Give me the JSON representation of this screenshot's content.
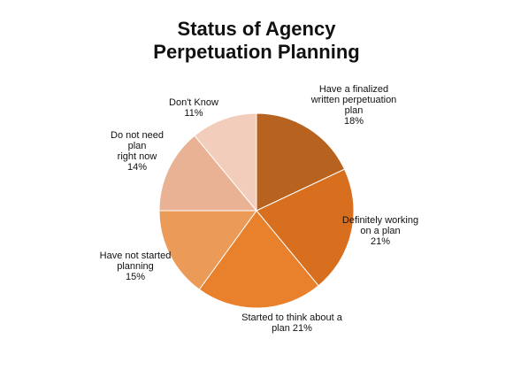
{
  "chart_data": {
    "type": "pie",
    "title_lines": [
      "Status of Agency",
      "Perpetuation Planning"
    ],
    "slices": [
      {
        "label_lines": [
          "Have a finalized",
          "written perpetuation",
          "plan",
          "18%"
        ],
        "value": 18,
        "color": "#b8621f"
      },
      {
        "label_lines": [
          "Definitely working",
          "on a plan",
          "21%"
        ],
        "value": 21,
        "color": "#d86f1f"
      },
      {
        "label_lines": [
          "Started to think about a",
          "plan  21%"
        ],
        "value": 21,
        "color": "#e8802c"
      },
      {
        "label_lines": [
          "Have not started",
          "planning",
          "15%"
        ],
        "value": 15,
        "color": "#ec9a57"
      },
      {
        "label_lines": [
          "Do not need",
          "plan",
          "right now",
          "14%"
        ],
        "value": 14,
        "color": "#eab294"
      },
      {
        "label_lines": [
          "Don't Know",
          "11%"
        ],
        "value": 11,
        "color": "#f3cdbb"
      }
    ],
    "start_angle_deg": 0,
    "direction": "clockwise"
  }
}
